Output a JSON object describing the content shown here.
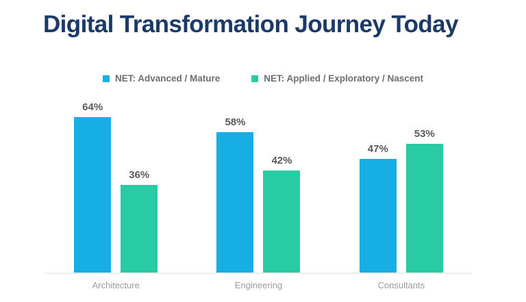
{
  "title": "Digital Transformation Journey Today",
  "chart_data": {
    "type": "bar",
    "title": "Digital Transformation Journey Today",
    "categories": [
      "Architecture",
      "Engineering",
      "Consultants"
    ],
    "series": [
      {
        "name": "NET: Advanced / Mature",
        "color": "#17AFE3",
        "values": [
          64,
          58,
          47
        ]
      },
      {
        "name": "NET: Applied / Exploratory / Nascent",
        "color": "#29CBA4",
        "values": [
          36,
          42,
          53
        ]
      }
    ],
    "value_suffix": "%",
    "data_labels": true,
    "xlabel": "",
    "ylabel": "",
    "ylim": [
      0,
      70
    ],
    "grid": false,
    "legend_position": "top-center"
  },
  "colors": {
    "title": "#1B3A68",
    "data_label": "#58595B",
    "legend_text": "#6D6E71",
    "category_label": "#9B9B9B",
    "axis_line": "#ECECEC",
    "background": "#FFFFFF"
  }
}
